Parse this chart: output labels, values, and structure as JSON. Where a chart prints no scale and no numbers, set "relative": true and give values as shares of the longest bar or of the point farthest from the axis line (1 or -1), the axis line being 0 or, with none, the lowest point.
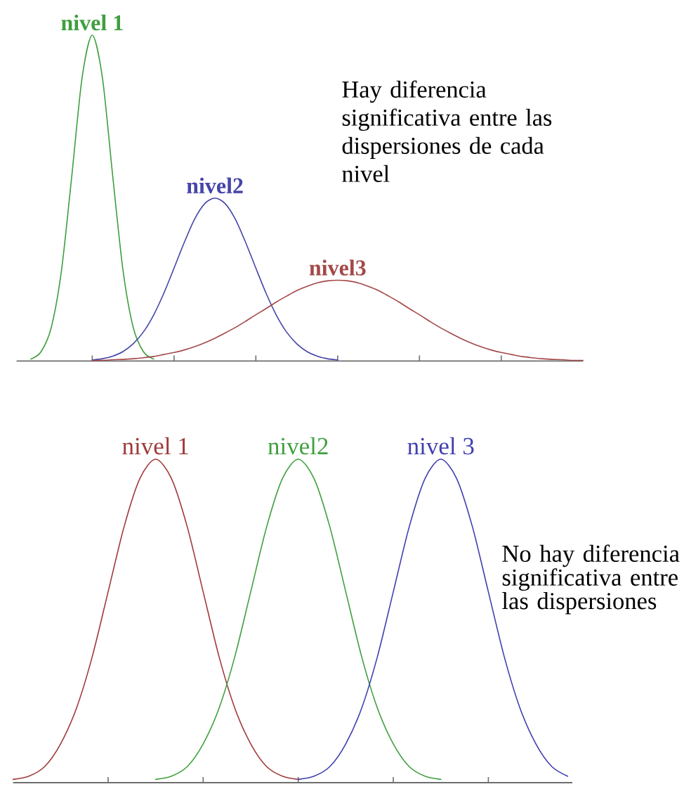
{
  "chart_data": [
    {
      "type": "line",
      "relative": true,
      "categories": [
        null,
        null,
        null,
        null,
        null,
        null,
        null,
        null,
        null,
        null,
        null,
        null,
        null,
        null,
        null,
        null,
        null,
        null,
        null,
        null,
        null,
        null,
        null,
        null,
        null,
        null,
        null,
        null,
        null,
        null,
        null,
        null,
        null,
        null,
        null,
        null,
        null,
        null,
        null,
        null,
        null,
        null,
        null,
        null,
        null,
        null,
        null,
        null,
        null,
        null,
        null,
        null,
        null,
        null,
        null
      ],
      "series": [
        {
          "name": "nivel 1",
          "color": "#3f9f3f",
          "values": [
            0.006,
            0.029,
            0.104,
            0.28,
            0.568,
            0.868,
            1,
            0.868,
            0.568,
            0.28,
            0.104,
            0.029,
            0.006,
            null,
            null,
            null,
            null,
            null,
            null,
            null,
            null,
            null,
            null,
            null,
            null,
            null,
            null,
            null,
            null,
            null,
            null,
            null,
            null,
            null,
            null,
            null,
            null,
            null,
            null,
            null,
            null,
            null,
            null,
            null,
            null,
            null,
            null,
            null,
            null,
            null,
            null,
            null,
            null,
            null,
            null
          ]
        },
        {
          "name": "nivel2",
          "color": "#4545a8",
          "values": [
            null,
            null,
            null,
            null,
            null,
            null,
            0.003,
            0.007,
            0.015,
            0.029,
            0.053,
            0.089,
            0.141,
            0.208,
            0.285,
            0.364,
            0.435,
            0.483,
            0.5,
            0.483,
            0.435,
            0.364,
            0.285,
            0.208,
            0.141,
            0.089,
            0.053,
            0.029,
            0.015,
            0.007,
            0.003,
            null,
            null,
            null,
            null,
            null,
            null,
            null,
            null,
            null,
            null,
            null,
            null,
            null,
            null,
            null,
            null,
            null,
            null,
            null,
            null,
            null,
            null,
            null,
            null
          ]
        },
        {
          "name": "nivel3",
          "color": "#a44848",
          "values": [
            null,
            null,
            null,
            null,
            null,
            null,
            0.002,
            0.002,
            0.004,
            0.005,
            0.007,
            0.01,
            0.014,
            0.02,
            0.026,
            0.034,
            0.044,
            0.056,
            0.07,
            0.086,
            0.103,
            0.122,
            0.142,
            0.161,
            0.181,
            0.199,
            0.216,
            0.229,
            0.24,
            0.246,
            0.248,
            0.246,
            0.24,
            0.229,
            0.216,
            0.199,
            0.181,
            0.161,
            0.142,
            0.122,
            0.103,
            0.086,
            0.07,
            0.056,
            0.044,
            0.034,
            0.026,
            0.02,
            0.014,
            0.01,
            0.007,
            0.005,
            0.004,
            0.002,
            0.002
          ]
        }
      ],
      "annotations": [
        "Hay diferencia significativa entre las dispersiones de cada nivel"
      ]
    },
    {
      "type": "line",
      "relative": true,
      "categories": [
        null,
        null,
        null,
        null,
        null,
        null,
        null,
        null,
        null,
        null,
        null,
        null,
        null,
        null,
        null,
        null,
        null,
        null,
        null,
        null,
        null,
        null,
        null,
        null,
        null,
        null,
        null,
        null,
        null,
        null,
        null,
        null,
        null,
        null,
        null,
        null
      ],
      "series": [
        {
          "name": "nivel 1",
          "color": "#a03a3a",
          "values": [
            0.01,
            0.02,
            0.05,
            0.12,
            0.23,
            0.39,
            0.59,
            0.79,
            0.94,
            1,
            0.94,
            0.79,
            0.59,
            0.39,
            0.23,
            0.12,
            0.05,
            0.02,
            0.01,
            null,
            null,
            null,
            null,
            null,
            null,
            null,
            null,
            null,
            null,
            null,
            null,
            null,
            null,
            null,
            null,
            null
          ]
        },
        {
          "name": "nivel2",
          "color": "#3fa03f",
          "values": [
            null,
            null,
            null,
            null,
            null,
            null,
            null,
            null,
            null,
            0.01,
            0.02,
            0.05,
            0.12,
            0.23,
            0.39,
            0.59,
            0.79,
            0.94,
            1,
            0.94,
            0.79,
            0.59,
            0.39,
            0.23,
            0.12,
            0.05,
            0.02,
            0.01,
            null,
            null,
            null,
            null,
            null,
            null,
            null,
            null
          ]
        },
        {
          "name": "nivel 3",
          "color": "#4040b0",
          "values": [
            null,
            null,
            null,
            null,
            null,
            null,
            null,
            null,
            null,
            null,
            null,
            null,
            null,
            null,
            null,
            null,
            null,
            null,
            0.01,
            0.02,
            0.05,
            0.12,
            0.23,
            0.39,
            0.59,
            0.79,
            0.94,
            1,
            0.94,
            0.79,
            0.59,
            0.39,
            0.23,
            0.12,
            0.05,
            0.02
          ]
        }
      ],
      "annotations": [
        "No hay diferencia significativa entre las dispersiones"
      ]
    }
  ]
}
